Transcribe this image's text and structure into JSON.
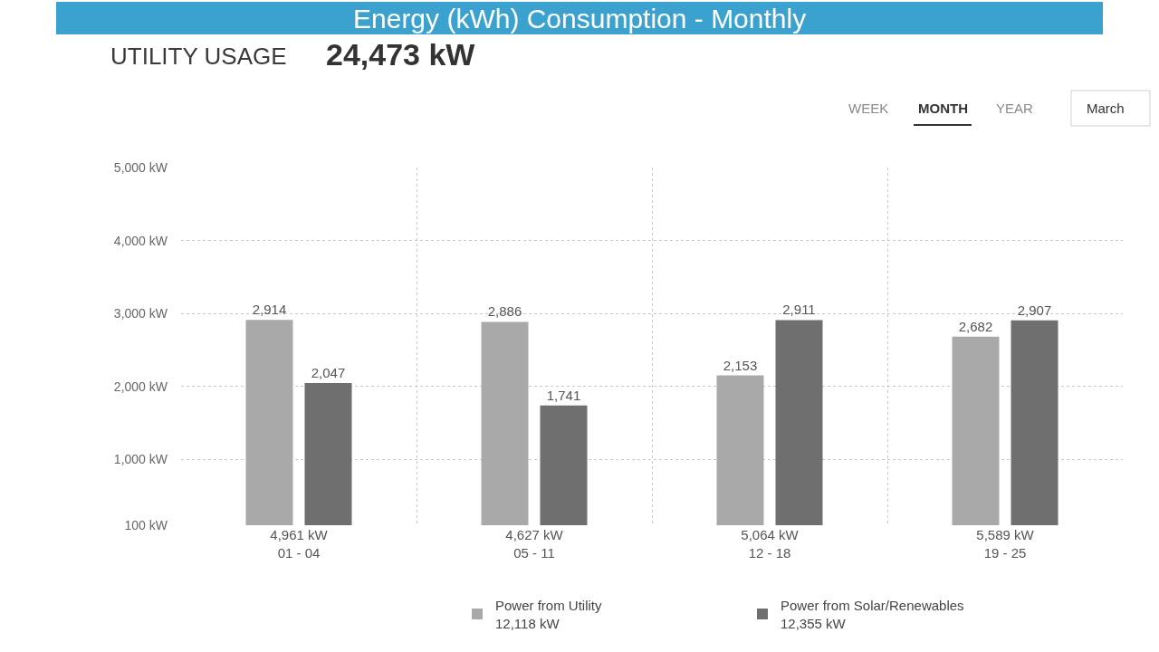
{
  "chart_data": {
    "type": "bar",
    "title": "UTILITY USAGE",
    "subtitle": "24,473 kW",
    "annotations": [
      "Energy (kWh) Consumption - Monthly",
      "WEEK",
      "MONTH",
      "YEAR",
      "March"
    ],
    "categories": [
      "4,961 kW\n01 - 04",
      "4,627 kW\n05 - 11",
      "5,064 kW\n12 - 18",
      "5,589 kW\n19 - 25"
    ],
    "series": [
      {
        "name": "Power from Utility\n12,118 kW",
        "color": "#a9a9a9",
        "values": [
          2914,
          2886,
          2153,
          2682
        ],
        "value_labels": [
          "2,914",
          "2,886",
          "2,153",
          "2,682"
        ]
      },
      {
        "name": "Power from Solar/Renewables\n12,355 kW",
        "color": "#6f6f6f",
        "values": [
          2047,
          1741,
          2911,
          2907
        ],
        "value_labels": [
          "2,047",
          "1,741",
          "2,911",
          "2,907"
        ]
      }
    ],
    "ylim": [
      100,
      5000
    ],
    "yticks": [
      {
        "value": 100,
        "label": "100 kW"
      },
      {
        "value": 1000,
        "label": "1,000 kW"
      },
      {
        "value": 2000,
        "label": "2,000 kW"
      },
      {
        "value": 3000,
        "label": "3,000 kW"
      },
      {
        "value": 4000,
        "label": "4,000 kW"
      },
      {
        "value": 5000,
        "label": "5,000 kW"
      }
    ],
    "grid": true,
    "legend": "bottom"
  }
}
